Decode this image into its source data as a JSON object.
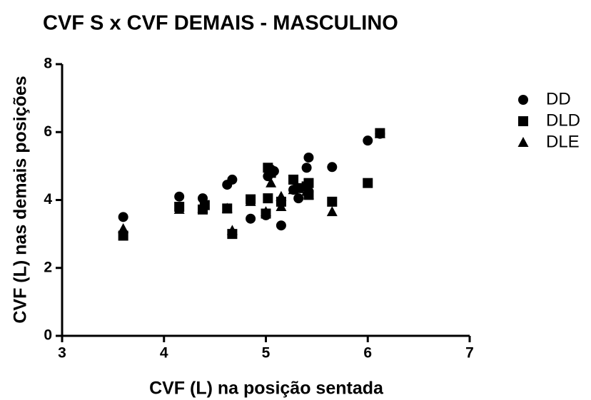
{
  "chart_data": {
    "type": "scatter",
    "title": "CVF S x CVF DEMAIS - MASCULINO",
    "x_label": "CVF (L) na posição sentada",
    "y_label": "CVF (L) nas demais posições",
    "xlim": [
      3,
      7
    ],
    "xticks": [
      3,
      4,
      5,
      6,
      7
    ],
    "ylim": [
      0,
      8
    ],
    "yticks": [
      0,
      2,
      4,
      6,
      8
    ],
    "legend": "right",
    "series": [
      {
        "name": "DD",
        "color": "#000000",
        "marker": "circle",
        "x": [
          3.6,
          4.15,
          4.38,
          4.62,
          4.67,
          4.85,
          5.0,
          5.02,
          5.05,
          5.08,
          5.15,
          5.27,
          5.32,
          5.4,
          5.42,
          5.42,
          5.65,
          6.0,
          6.12
        ],
        "values": [
          3.5,
          4.1,
          4.05,
          4.45,
          4.6,
          3.45,
          3.55,
          4.7,
          4.9,
          4.85,
          3.25,
          4.3,
          4.05,
          4.95,
          5.25,
          4.25,
          4.97,
          5.75,
          5.95
        ]
      },
      {
        "name": "DLD",
        "color": "#000000",
        "marker": "square",
        "x": [
          3.6,
          4.15,
          4.38,
          4.4,
          4.62,
          4.67,
          4.85,
          5.0,
          5.02,
          5.02,
          5.05,
          5.15,
          5.27,
          5.32,
          5.4,
          5.42,
          5.42,
          5.65,
          6.0,
          6.12
        ],
        "values": [
          2.95,
          3.8,
          3.72,
          3.85,
          3.75,
          3.0,
          4.02,
          3.6,
          4.95,
          4.05,
          4.8,
          3.95,
          4.6,
          4.35,
          4.4,
          4.5,
          4.15,
          3.95,
          4.5,
          5.97
        ]
      },
      {
        "name": "DLE",
        "color": "#000000",
        "marker": "triangle",
        "x": [
          3.6,
          4.15,
          4.38,
          4.62,
          4.67,
          4.85,
          5.0,
          5.05,
          5.15,
          5.15,
          5.27,
          5.4,
          5.42,
          5.65,
          6.12
        ],
        "values": [
          3.15,
          3.72,
          3.75,
          3.75,
          3.1,
          3.95,
          3.65,
          4.5,
          4.1,
          3.8,
          4.3,
          4.25,
          4.15,
          3.65,
          5.95
        ]
      }
    ]
  }
}
